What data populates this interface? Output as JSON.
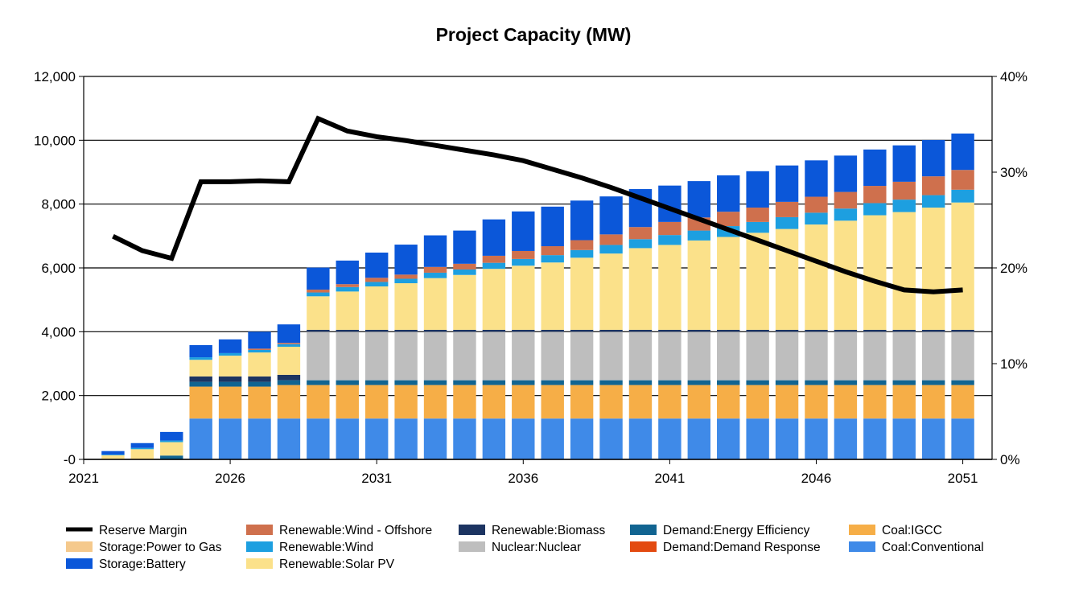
{
  "chart_data": {
    "type": "bar",
    "stacked": true,
    "title": "Project Capacity (MW)",
    "x": [
      2022,
      2023,
      2024,
      2025,
      2026,
      2027,
      2028,
      2029,
      2030,
      2031,
      2032,
      2033,
      2034,
      2035,
      2036,
      2037,
      2038,
      2039,
      2040,
      2041,
      2042,
      2043,
      2044,
      2045,
      2046,
      2047,
      2048,
      2049,
      2050,
      2051
    ],
    "xlim": [
      2021,
      2052
    ],
    "xticks": [
      "2021",
      "2026",
      "2031",
      "2036",
      "2041",
      "2046",
      "2051"
    ],
    "y_left": {
      "min": 0,
      "max": 12000,
      "ticks": [
        "-0",
        "2,000",
        "4,000",
        "6,000",
        "8,000",
        "10,000",
        "12,000"
      ]
    },
    "y_right": {
      "min": 0,
      "max": 40,
      "ticks": [
        "0%",
        "10%",
        "20%",
        "30%",
        "40%"
      ]
    },
    "grid": true,
    "series": [
      {
        "name": "Coal:Conventional",
        "color": "#3f8ae8",
        "values": [
          0,
          0,
          0,
          1280,
          1280,
          1280,
          1280,
          1280,
          1280,
          1280,
          1280,
          1280,
          1280,
          1280,
          1280,
          1280,
          1280,
          1280,
          1280,
          1280,
          1280,
          1280,
          1280,
          1280,
          1280,
          1280,
          1280,
          1280,
          1280,
          1280
        ]
      },
      {
        "name": "Coal:IGCC",
        "color": "#f6ae47",
        "values": [
          0,
          0,
          0,
          1000,
          1000,
          1000,
          1050,
          1050,
          1050,
          1050,
          1050,
          1050,
          1050,
          1050,
          1050,
          1050,
          1050,
          1050,
          1050,
          1050,
          1050,
          1050,
          1050,
          1050,
          1050,
          1050,
          1050,
          1050,
          1050,
          1050
        ]
      },
      {
        "name": "Demand:Demand Response",
        "color": "#e34a10",
        "values": [
          0,
          0,
          0,
          0,
          0,
          0,
          0,
          0,
          0,
          0,
          0,
          0,
          0,
          0,
          0,
          0,
          0,
          0,
          0,
          0,
          0,
          0,
          0,
          0,
          0,
          0,
          0,
          0,
          0,
          0
        ]
      },
      {
        "name": "Demand:Energy Efficiency",
        "color": "#116491",
        "values": [
          0,
          0,
          120,
          150,
          150,
          150,
          150,
          150,
          150,
          150,
          150,
          150,
          150,
          150,
          150,
          150,
          150,
          150,
          150,
          150,
          150,
          150,
          150,
          150,
          150,
          150,
          150,
          150,
          150,
          150
        ]
      },
      {
        "name": "Nuclear:Nuclear",
        "color": "#bebebe",
        "values": [
          0,
          0,
          0,
          0,
          0,
          0,
          0,
          1520,
          1520,
          1520,
          1520,
          1520,
          1520,
          1520,
          1520,
          1520,
          1520,
          1520,
          1520,
          1520,
          1520,
          1520,
          1520,
          1520,
          1520,
          1520,
          1520,
          1520,
          1520,
          1520
        ]
      },
      {
        "name": "Renewable:Biomass",
        "color": "#1c3461",
        "values": [
          0,
          0,
          0,
          170,
          170,
          170,
          170,
          60,
          60,
          60,
          60,
          60,
          60,
          60,
          60,
          60,
          60,
          60,
          60,
          60,
          60,
          60,
          60,
          60,
          60,
          60,
          60,
          60,
          60,
          60
        ]
      },
      {
        "name": "Renewable:Solar PV",
        "color": "#fbe18a",
        "values": [
          130,
          320,
          420,
          520,
          650,
          750,
          880,
          1050,
          1200,
          1360,
          1460,
          1620,
          1720,
          1910,
          2010,
          2110,
          2260,
          2390,
          2560,
          2660,
          2800,
          2910,
          3040,
          3160,
          3300,
          3420,
          3590,
          3690,
          3830,
          3990
        ]
      },
      {
        "name": "Renewable:Wind",
        "color": "#1d9fe0",
        "values": [
          20,
          40,
          50,
          80,
          80,
          80,
          80,
          120,
          140,
          140,
          140,
          170,
          170,
          190,
          210,
          230,
          240,
          270,
          280,
          310,
          310,
          340,
          340,
          370,
          370,
          380,
          380,
          390,
          390,
          400
        ]
      },
      {
        "name": "Renewable:Wind - Offshore",
        "color": "#cf704d",
        "values": [
          0,
          0,
          0,
          0,
          0,
          40,
          40,
          90,
          90,
          130,
          130,
          180,
          180,
          220,
          250,
          280,
          310,
          330,
          380,
          410,
          410,
          450,
          450,
          480,
          500,
          520,
          540,
          560,
          590,
          620
        ]
      },
      {
        "name": "Storage:Power to Gas",
        "color": "#f5c98c",
        "values": [
          0,
          0,
          0,
          0,
          0,
          0,
          0,
          0,
          0,
          0,
          0,
          0,
          0,
          0,
          0,
          0,
          0,
          0,
          0,
          0,
          0,
          0,
          0,
          0,
          0,
          0,
          0,
          0,
          0,
          0
        ]
      },
      {
        "name": "Storage:Battery",
        "color": "#0b57d9",
        "values": [
          110,
          150,
          270,
          380,
          430,
          530,
          580,
          690,
          740,
          790,
          940,
          990,
          1040,
          1140,
          1240,
          1240,
          1240,
          1190,
          1190,
          1140,
          1140,
          1140,
          1140,
          1140,
          1140,
          1140,
          1140,
          1140,
          1140,
          1140
        ]
      }
    ],
    "line": {
      "name": "Reserve Margin",
      "axis": "right",
      "color": "#000000",
      "values": [
        23.3,
        21.8,
        21.0,
        29.0,
        29.0,
        29.1,
        29.0,
        35.6,
        34.3,
        33.7,
        33.3,
        32.8,
        32.3,
        31.8,
        31.2,
        30.3,
        29.4,
        28.4,
        27.3,
        26.2,
        25.1,
        24.0,
        22.9,
        21.8,
        20.7,
        19.6,
        18.6,
        17.7,
        17.5,
        17.7
      ]
    },
    "legend": {
      "placement": "bottom",
      "entries": [
        {
          "label": "Reserve Margin",
          "kind": "line",
          "color": "#000000"
        },
        {
          "label": "Renewable:Wind - Offshore",
          "kind": "box",
          "color": "#cf704d"
        },
        {
          "label": "Renewable:Biomass",
          "kind": "box",
          "color": "#1c3461"
        },
        {
          "label": "Demand:Energy Efficiency",
          "kind": "box",
          "color": "#116491"
        },
        {
          "label": "Coal:IGCC",
          "kind": "box",
          "color": "#f6ae47"
        },
        {
          "label": "Storage:Power to Gas",
          "kind": "box",
          "color": "#f5c98c"
        },
        {
          "label": "Renewable:Wind",
          "kind": "box",
          "color": "#1d9fe0"
        },
        {
          "label": "Nuclear:Nuclear",
          "kind": "box",
          "color": "#bebebe"
        },
        {
          "label": "Demand:Demand Response",
          "kind": "box",
          "color": "#e34a10"
        },
        {
          "label": "Coal:Conventional",
          "kind": "box",
          "color": "#3f8ae8"
        },
        {
          "label": "Storage:Battery",
          "kind": "box",
          "color": "#0b57d9"
        },
        {
          "label": "Renewable:Solar PV",
          "kind": "box",
          "color": "#fbe18a"
        }
      ]
    }
  }
}
